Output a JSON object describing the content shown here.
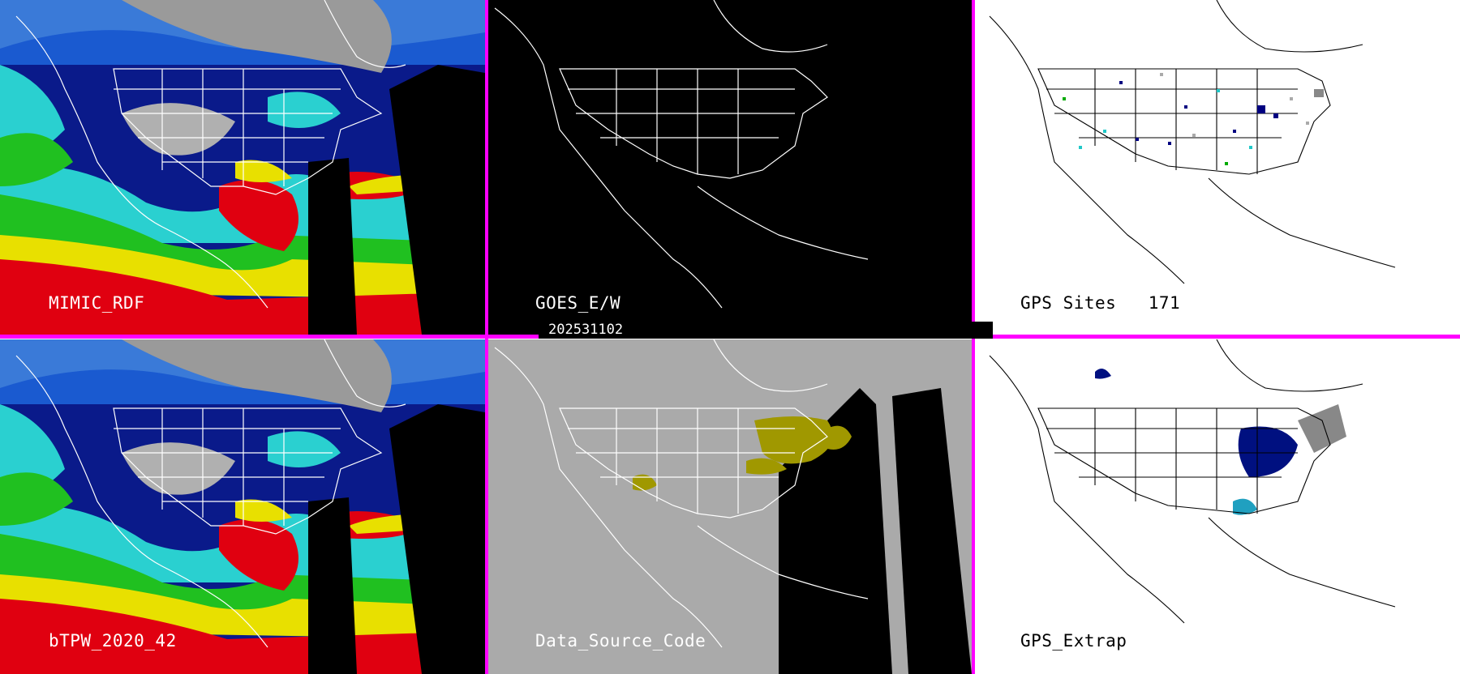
{
  "colors": {
    "divider": "#ff00ff",
    "goes_bg": "#000000",
    "dsc_bg": "#aaaaaa",
    "gps_bg": "#ffffff",
    "mimic_label": "#ffffff",
    "dsc_highlight": "#a09800"
  },
  "panels": {
    "mimic": {
      "label": "MIMIC_RDF"
    },
    "goes": {
      "label": "GOES_E/W"
    },
    "gps_sites": {
      "label": "GPS Sites",
      "count": "171"
    },
    "btpw": {
      "label": "bTPW_2020_42"
    },
    "dsc": {
      "label": "Data_Source_Code"
    },
    "gps_extrap": {
      "label": "GPS_Extrap"
    }
  },
  "date_bar": {
    "text": "202531102"
  }
}
